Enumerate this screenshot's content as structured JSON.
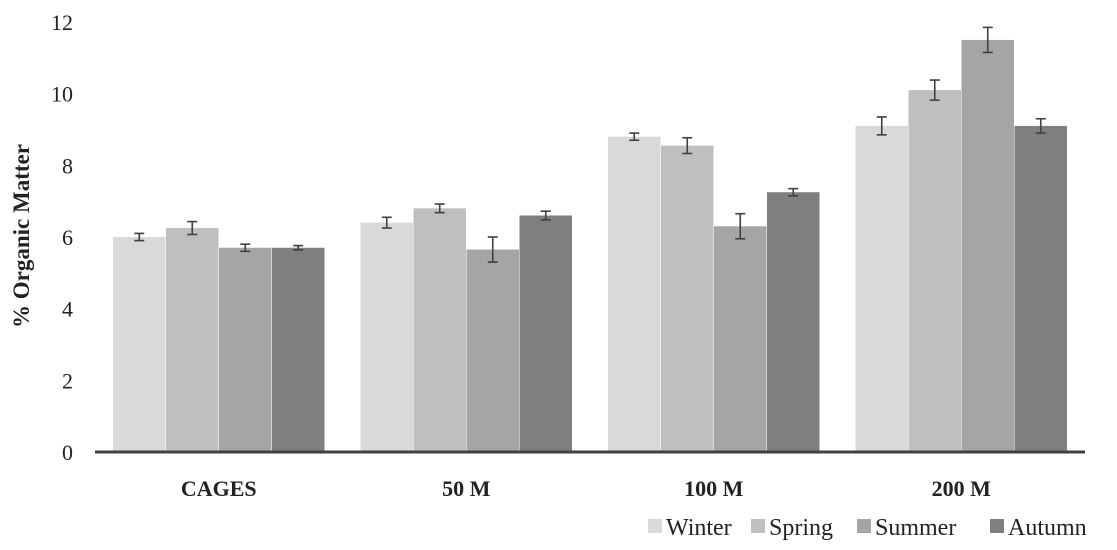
{
  "chart_data": {
    "type": "bar",
    "title": "",
    "xlabel": "",
    "ylabel": "% Organic Matter",
    "ylim": [
      0,
      12
    ],
    "yticks": [
      "0",
      "2",
      "4",
      "6",
      "8",
      "10",
      "12"
    ],
    "grid": false,
    "legend_position": "bottom-right",
    "categories": [
      "CAGES",
      "50 M",
      "100 M",
      "200 M"
    ],
    "series": [
      {
        "name": "Winter",
        "color": "#d9d9d9",
        "values": [
          6.0,
          6.4,
          8.8,
          9.1
        ],
        "errors": [
          0.1,
          0.15,
          0.1,
          0.25
        ]
      },
      {
        "name": "Spring",
        "color": "#bfbfbf",
        "values": [
          6.25,
          6.8,
          8.55,
          10.1
        ],
        "errors": [
          0.18,
          0.12,
          0.22,
          0.28
        ]
      },
      {
        "name": "Summer",
        "color": "#a5a5a5",
        "values": [
          5.7,
          5.65,
          6.3,
          11.5
        ],
        "errors": [
          0.1,
          0.35,
          0.35,
          0.35
        ]
      },
      {
        "name": "Autumn",
        "color": "#7f7f7f",
        "values": [
          5.7,
          6.6,
          7.25,
          9.1
        ],
        "errors": [
          0.06,
          0.12,
          0.1,
          0.2
        ]
      }
    ]
  }
}
